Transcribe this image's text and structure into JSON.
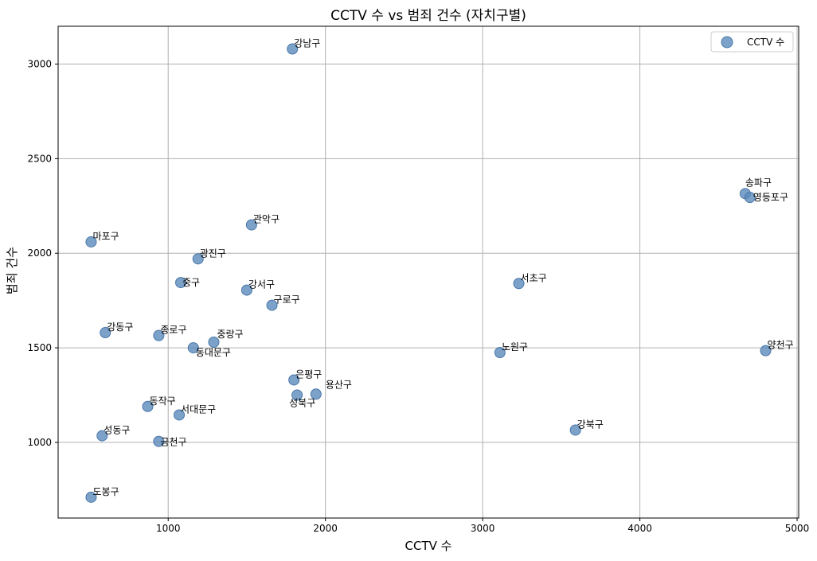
{
  "chart_data": {
    "type": "scatter",
    "title": "CCTV 수 vs 범죄 건수 (자치구별)",
    "xlabel": "CCTV 수",
    "ylabel": "범죄 건수",
    "xlim": [
      300,
      5010
    ],
    "ylim": [
      600,
      3200
    ],
    "xticks": [
      1000,
      2000,
      3000,
      4000,
      5000
    ],
    "yticks": [
      1000,
      1500,
      2000,
      2500,
      3000
    ],
    "grid": true,
    "legend": {
      "position": "top-right",
      "entries": [
        "CCTV 수"
      ]
    },
    "marker_color": "#5b8bbd",
    "series": [
      {
        "name": "CCTV 수",
        "points": [
          {
            "label": "강남구",
            "x": 1790,
            "y": 3080
          },
          {
            "label": "송파구",
            "x": 4670,
            "y": 2315
          },
          {
            "label": "영등포구",
            "x": 4700,
            "y": 2295
          },
          {
            "label": "관악구",
            "x": 1530,
            "y": 2150
          },
          {
            "label": "마포구",
            "x": 510,
            "y": 2060
          },
          {
            "label": "광진구",
            "x": 1190,
            "y": 1970
          },
          {
            "label": "중구",
            "x": 1080,
            "y": 1845
          },
          {
            "label": "서초구",
            "x": 3230,
            "y": 1840
          },
          {
            "label": "강서구",
            "x": 1500,
            "y": 1805
          },
          {
            "label": "구로구",
            "x": 1660,
            "y": 1725
          },
          {
            "label": "강동구",
            "x": 600,
            "y": 1580
          },
          {
            "label": "종로구",
            "x": 940,
            "y": 1565
          },
          {
            "label": "중랑구",
            "x": 1290,
            "y": 1530
          },
          {
            "label": "동대문구",
            "x": 1160,
            "y": 1500
          },
          {
            "label": "노원구",
            "x": 3110,
            "y": 1475
          },
          {
            "label": "양천구",
            "x": 4800,
            "y": 1485
          },
          {
            "label": "은평구",
            "x": 1800,
            "y": 1330
          },
          {
            "label": "성북구",
            "x": 1820,
            "y": 1250
          },
          {
            "label": "용산구",
            "x": 1940,
            "y": 1255
          },
          {
            "label": "동작구",
            "x": 870,
            "y": 1190
          },
          {
            "label": "서대문구",
            "x": 1070,
            "y": 1145
          },
          {
            "label": "강북구",
            "x": 3590,
            "y": 1065
          },
          {
            "label": "성동구",
            "x": 580,
            "y": 1035
          },
          {
            "label": "금천구",
            "x": 940,
            "y": 1005
          },
          {
            "label": "도봉구",
            "x": 510,
            "y": 710
          }
        ]
      }
    ]
  }
}
